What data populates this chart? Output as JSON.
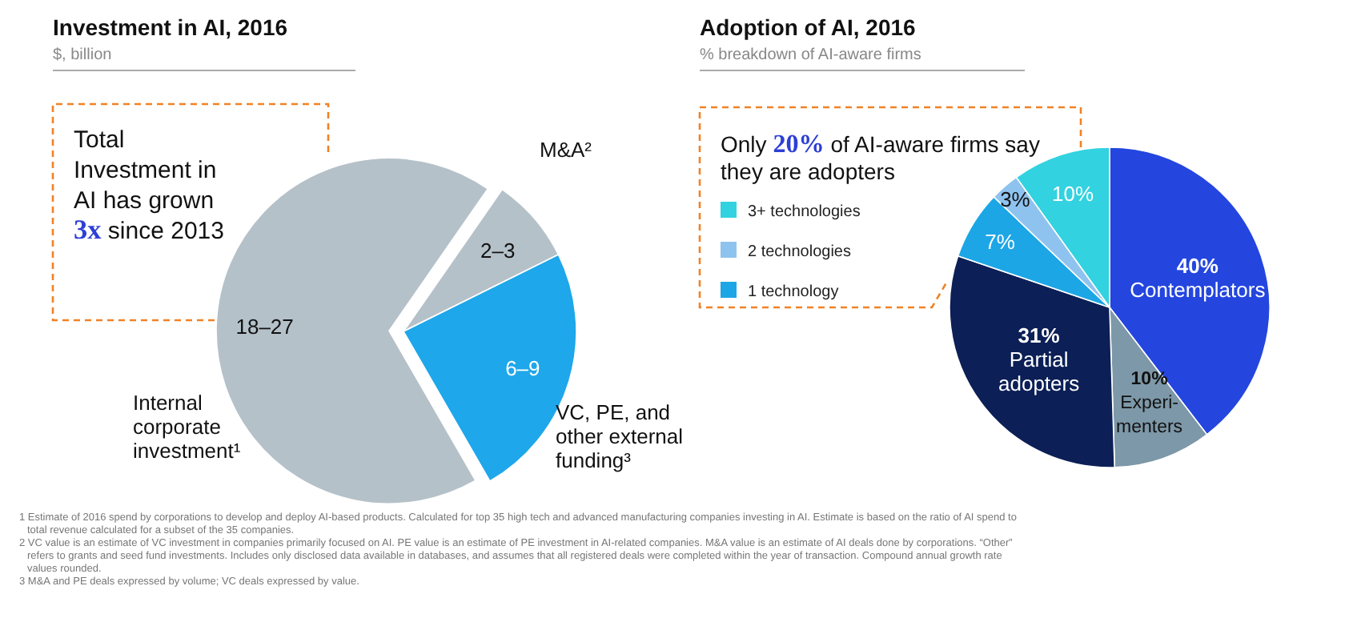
{
  "chart_data": [
    {
      "type": "pie",
      "title": "Investment in AI, 2016",
      "subtitle": "$, billion",
      "categories": [
        "Internal corporate investment¹",
        "M&A²",
        "VC, PE, and other external funding³"
      ],
      "values": [
        68,
        8,
        24
      ],
      "value_labels": [
        "18–27",
        "2–3",
        "6–9"
      ],
      "colors": [
        "#b5c1c9",
        "#b5c1c9",
        "#1ea7ea"
      ],
      "annotations": [
        "Total Investment in AI has grown 3x since 2013",
        "1 Estimate of 2016 spend by corporations to develop and deploy AI-based products. Calculated for top 35 high tech and advanced manufacturing companies investing in AI. Estimate is based on the ratio of AI spend to total revenue calculated for a subset of the 35 companies.",
        "2 VC value is an estimate of VC investment in companies primarily focused on AI. PE value is an estimate of PE investment in AI-related companies. M&A value is an estimate of AI deals done by corporations. “Other” refers to grants and seed fund investments. Includes only disclosed data available in databases, and assumes that all registered deals were completed within the year of transaction. Compound annual growth rate values rounded.",
        "3 M&A and PE deals expressed by volume; VC deals expressed by value."
      ]
    },
    {
      "type": "pie",
      "title": "Adoption of AI, 2016",
      "subtitle": "% breakdown of AI-aware firms",
      "categories": [
        "Contemplators",
        "Experi-menters",
        "Partial adopters",
        "1 technology",
        "2 technologies",
        "3+ technologies"
      ],
      "values": [
        40,
        10,
        31,
        7,
        3,
        10
      ],
      "value_labels": [
        "40%",
        "10%",
        "31%",
        "7%",
        "3%",
        "10%"
      ],
      "colors": [
        "#2446df",
        "#7d98a8",
        "#0c1f56",
        "#1ca6e6",
        "#8fc3ef",
        "#33d2e0"
      ],
      "legend": "top left",
      "annotations": [
        "Only 20% of AI-aware firms say they are adopters"
      ]
    }
  ]
}
